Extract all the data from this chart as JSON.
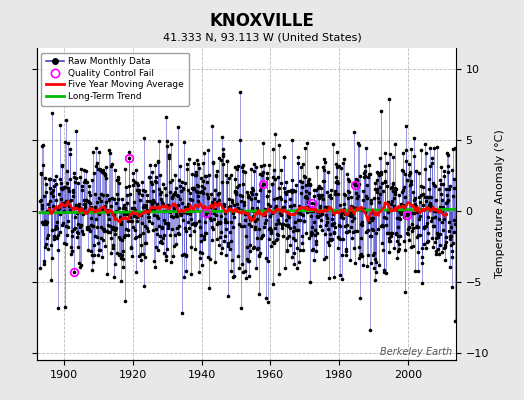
{
  "title": "KNOXVILLE",
  "subtitle": "41.333 N, 93.113 W (United States)",
  "ylabel": "Temperature Anomaly (°C)",
  "watermark": "Berkeley Earth",
  "year_start": 1893,
  "year_end": 2013,
  "ylim": [
    -10.5,
    11.5
  ],
  "yticks": [
    -10,
    -5,
    0,
    5,
    10
  ],
  "xticks": [
    1900,
    1920,
    1940,
    1960,
    1980,
    2000
  ],
  "background_color": "#e8e8e8",
  "plot_bg_color": "#ffffff",
  "raw_line_color": "#4444cc",
  "raw_dot_color": "#000000",
  "moving_avg_color": "#ff0000",
  "trend_color": "#00bb00",
  "qc_fail_color": "#ff00ff",
  "grid_color": "#bbbbbb",
  "seed": 17
}
